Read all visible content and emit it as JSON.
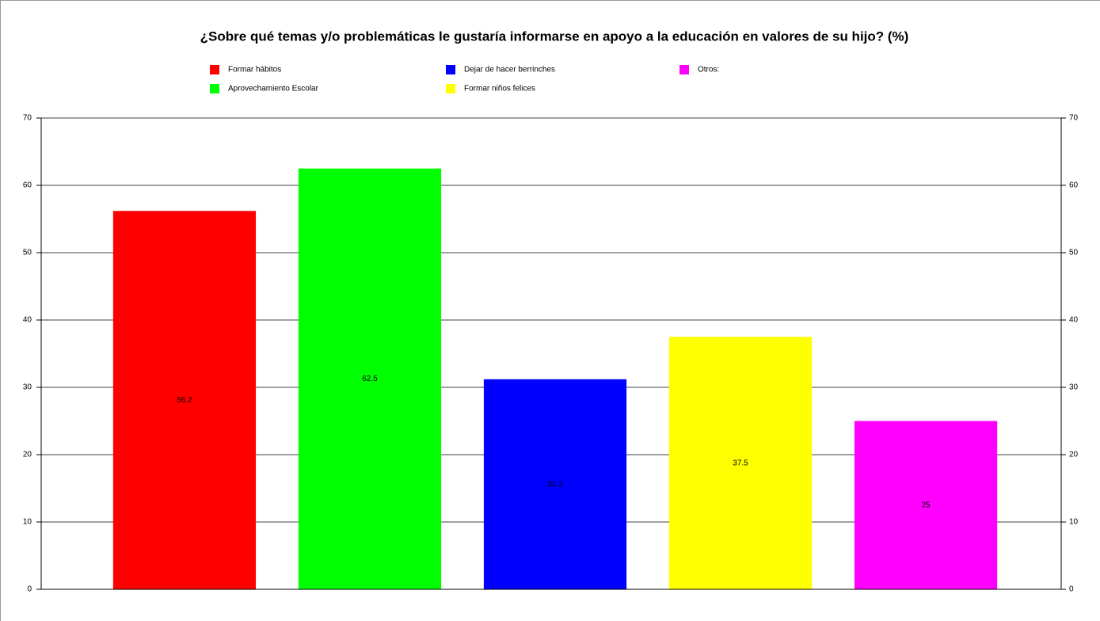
{
  "chart_data": {
    "type": "bar",
    "title": "¿Sobre qué temas y/o problemáticas le gustaría informarse en apoyo a la educación en valores de su hijo? (%)",
    "categories": [
      null
    ],
    "series": [
      {
        "name": "Formar hábitos",
        "color": "#ff0000",
        "values": [
          56.2
        ]
      },
      {
        "name": "Aprovechamiento Escolar",
        "color": "#00ff00",
        "values": [
          62.5
        ]
      },
      {
        "name": "Dejar de hacer berrinches",
        "color": "#0000ff",
        "values": [
          31.2
        ]
      },
      {
        "name": "Formar niños felices",
        "color": "#ffff00",
        "values": [
          37.5
        ]
      },
      {
        "name": "Otros:",
        "color": "#ff00ff",
        "values": [
          25
        ]
      }
    ],
    "ylim": [
      0,
      70
    ],
    "yticks": [
      0,
      10,
      20,
      30,
      40,
      50,
      60,
      70
    ],
    "y2lim": [
      0,
      70
    ],
    "y2ticks": [
      0,
      10,
      20,
      30,
      40,
      50,
      60,
      70
    ],
    "grid": true,
    "legend": "top"
  }
}
